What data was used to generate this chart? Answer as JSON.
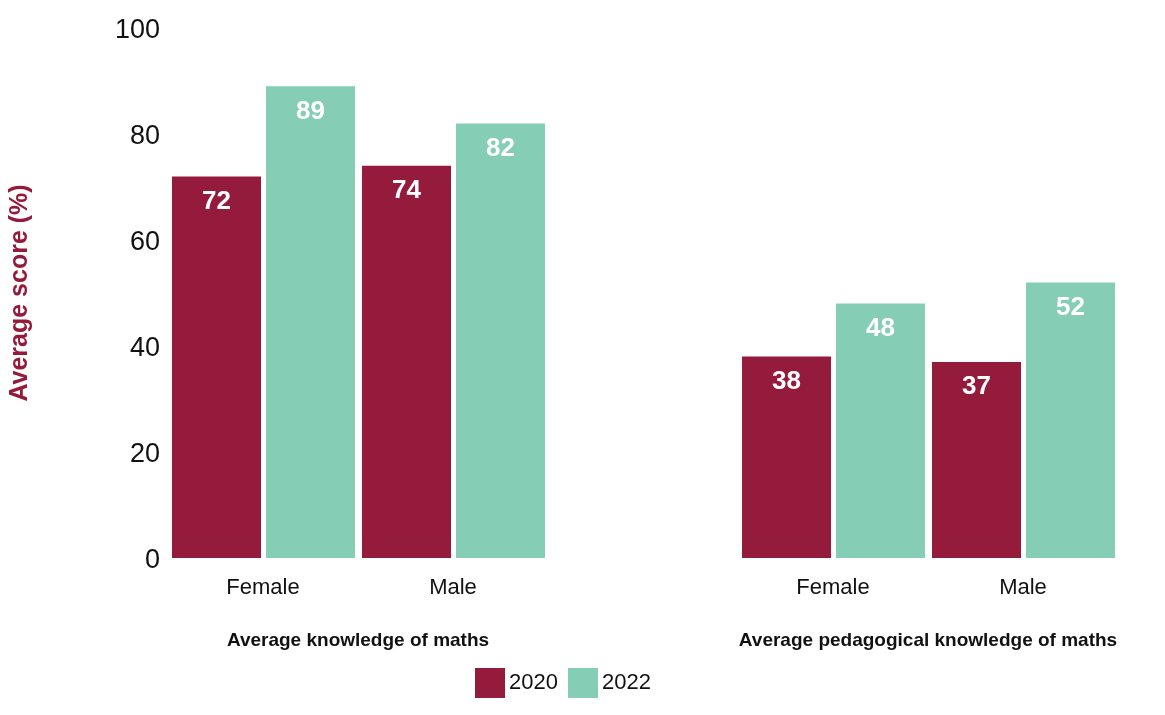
{
  "chart_data": {
    "type": "bar",
    "ylabel": "Average score (%)",
    "categories": [
      "Female",
      "Male",
      "Female",
      "Male"
    ],
    "annotations": [
      "Average knowledge of maths",
      "Average pedagogical knowledge of maths"
    ],
    "series": [
      {
        "name": "2020",
        "color": "#951b3c",
        "values": [
          72,
          74,
          38,
          37
        ]
      },
      {
        "name": "2022",
        "color": "#85cdb4",
        "values": [
          89,
          82,
          48,
          52
        ]
      }
    ],
    "ylim": [
      0,
      100
    ],
    "yticks": [
      0,
      20,
      40,
      60,
      80,
      100
    ],
    "grid": false,
    "legend": "bottom",
    "data_labels": true
  }
}
